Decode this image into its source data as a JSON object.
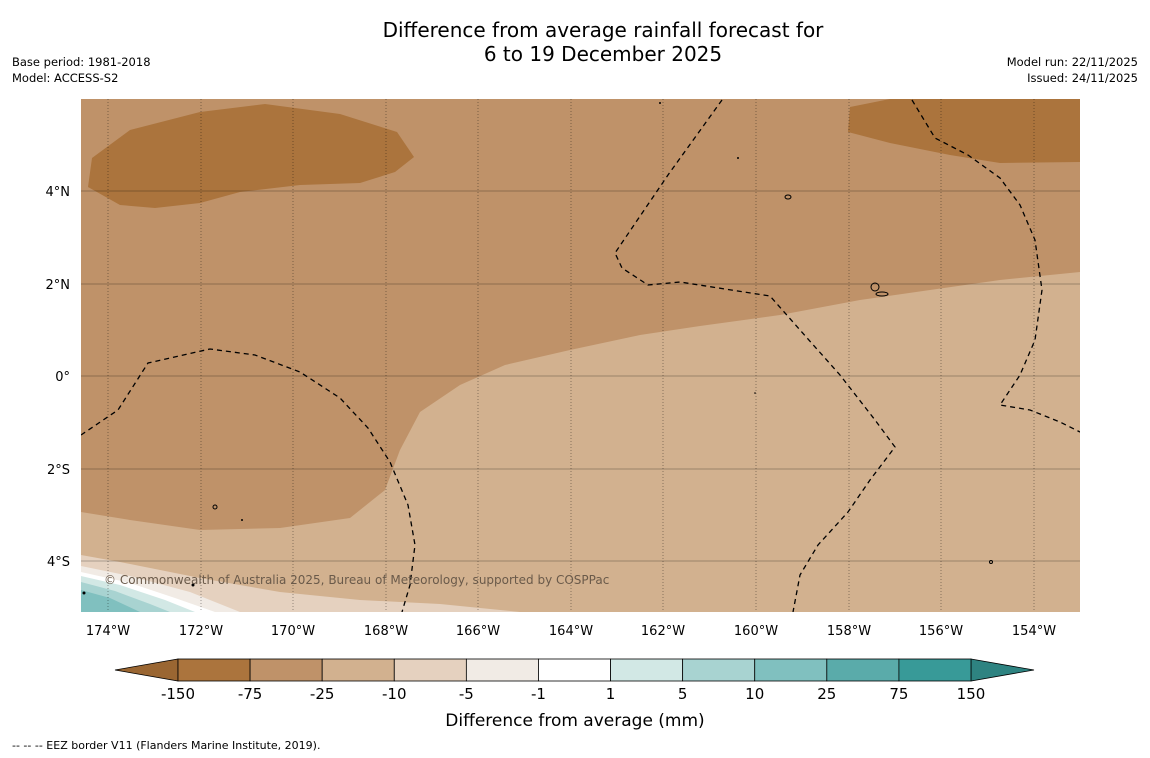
{
  "title": {
    "line1": "Difference from average rainfall forecast for",
    "line2": "6 to 19 December 2025"
  },
  "meta_left": {
    "base_period": "Base period: 1981-2018",
    "model": "Model: ACCESS-S2"
  },
  "meta_right": {
    "model_run": "Model run: 22/11/2025",
    "issued": "Issued: 24/11/2025"
  },
  "map": {
    "lat_ticks": [
      "4°N",
      "2°N",
      "0°",
      "2°S",
      "4°S"
    ],
    "lon_ticks": [
      "174°W",
      "172°W",
      "170°W",
      "168°W",
      "166°W",
      "164°W",
      "162°W",
      "160°W",
      "158°W",
      "156°W",
      "154°W"
    ],
    "copyright": "© Commonwealth of Australia 2025, Bureau of Meteorology, supported by COSPPac"
  },
  "colorbar": {
    "boundaries": [
      "-150",
      "-75",
      "-25",
      "-10",
      "-5",
      "-1",
      "1",
      "5",
      "10",
      "25",
      "75",
      "150"
    ],
    "colors": [
      "#ab743d",
      "#bf9269",
      "#d2b18f",
      "#e5d1bf",
      "#f1ebe5",
      "#ffffff",
      "#d2e8e5",
      "#a8d3d1",
      "#80c0bf",
      "#5aabaa",
      "#389a98"
    ],
    "under_color": "#9a6632",
    "over_color": "#2e8381",
    "title": "Difference from average (mm)"
  },
  "colors": {
    "very_dry": "#ab743d",
    "dry": "#bf9269",
    "slightly_dry": "#d2b18f",
    "light": "#e5d1bf"
  },
  "footnote": "--  --  -- EEZ border V11 (Flanders Marine Institute, 2019)."
}
